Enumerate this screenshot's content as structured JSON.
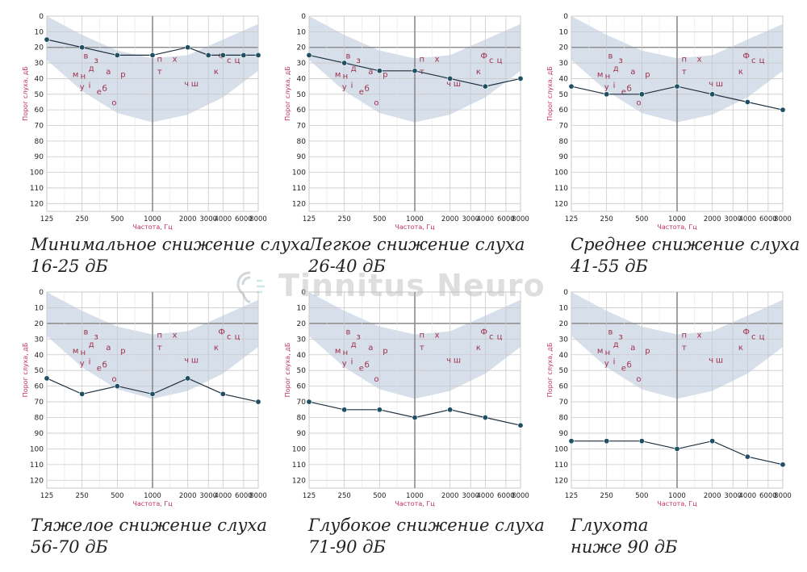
{
  "colors": {
    "grid": "#c9c9c9",
    "gridMajor": "#8a8a8a",
    "band": "#d6dfea",
    "line": "#1e2f3d",
    "point": "#1f4f63",
    "axisText": "#222222",
    "axisLabel": "#c0335a",
    "phoneme": "#a0304a"
  },
  "watermark": {
    "text": "Tinnitus Neuro"
  },
  "chart_data": [
    {
      "type": "line",
      "caption": [
        "Минимальное снижение слуха",
        "16-25 дБ"
      ],
      "xlabel": "Частота, Гц",
      "ylabel": "Порог слуха, дБ",
      "x_ticks": [
        "125",
        "250",
        "500",
        "1000",
        "2000",
        "3000",
        "4000",
        "6000",
        "8000"
      ],
      "y_ticks": [
        "0",
        "10",
        "20",
        "30",
        "40",
        "50",
        "60",
        "70",
        "80",
        "90",
        "100",
        "110",
        "120"
      ],
      "ylim": [
        0,
        125
      ],
      "y_reversed": true,
      "series": [
        {
          "x": [
            125,
            250,
            500,
            1000,
            2000,
            3000,
            4000,
            6000,
            8000
          ],
          "values": [
            15,
            20,
            25,
            25,
            20,
            25,
            25,
            25,
            25
          ]
        }
      ]
    },
    {
      "type": "line",
      "caption": [
        "Легкое снижение слуха",
        "26-40 дБ"
      ],
      "xlabel": "Частота, Гц",
      "ylabel": "Порог слуха, дБ",
      "x_ticks": [
        "125",
        "250",
        "500",
        "1000",
        "2000",
        "3000",
        "4000",
        "6000",
        "8000"
      ],
      "y_ticks": [
        "0",
        "10",
        "20",
        "30",
        "40",
        "50",
        "60",
        "70",
        "80",
        "90",
        "100",
        "110",
        "120"
      ],
      "ylim": [
        0,
        125
      ],
      "y_reversed": true,
      "series": [
        {
          "x": [
            125,
            250,
            500,
            1000,
            2000,
            4000,
            8000
          ],
          "values": [
            25,
            30,
            35,
            35,
            40,
            45,
            40
          ]
        }
      ]
    },
    {
      "type": "line",
      "caption": [
        "Среднее снижение слуха",
        "41-55 дБ"
      ],
      "xlabel": "Частота, Гц",
      "ylabel": "Порог слуха, дБ",
      "x_ticks": [
        "125",
        "250",
        "500",
        "1000",
        "2000",
        "3000",
        "4000",
        "6000",
        "8000"
      ],
      "y_ticks": [
        "0",
        "10",
        "20",
        "30",
        "40",
        "50",
        "60",
        "70",
        "80",
        "90",
        "100",
        "110",
        "120"
      ],
      "ylim": [
        0,
        125
      ],
      "y_reversed": true,
      "series": [
        {
          "x": [
            125,
            250,
            500,
            1000,
            2000,
            4000,
            8000
          ],
          "values": [
            45,
            50,
            50,
            45,
            50,
            55,
            60
          ]
        }
      ]
    },
    {
      "type": "line",
      "caption": [
        "Тяжелое снижение слуха",
        "56-70 дБ"
      ],
      "xlabel": "Частота, Гц",
      "ylabel": "Порог слуха, дБ",
      "x_ticks": [
        "125",
        "250",
        "500",
        "1000",
        "2000",
        "3000",
        "4000",
        "6000",
        "8000"
      ],
      "y_ticks": [
        "0",
        "10",
        "20",
        "30",
        "40",
        "50",
        "60",
        "70",
        "80",
        "90",
        "100",
        "110",
        "120"
      ],
      "ylim": [
        0,
        125
      ],
      "y_reversed": true,
      "series": [
        {
          "x": [
            125,
            250,
            500,
            1000,
            2000,
            4000,
            8000
          ],
          "values": [
            55,
            65,
            60,
            65,
            55,
            65,
            70
          ]
        }
      ]
    },
    {
      "type": "line",
      "caption": [
        "Глубокое снижение слуха",
        "71-90 дБ"
      ],
      "xlabel": "Частота, Гц",
      "ylabel": "Порог слуха, дБ",
      "x_ticks": [
        "125",
        "250",
        "500",
        "1000",
        "2000",
        "3000",
        "4000",
        "6000",
        "8000"
      ],
      "y_ticks": [
        "0",
        "10",
        "20",
        "30",
        "40",
        "50",
        "60",
        "70",
        "80",
        "90",
        "100",
        "110",
        "120"
      ],
      "ylim": [
        0,
        125
      ],
      "y_reversed": true,
      "series": [
        {
          "x": [
            125,
            250,
            500,
            1000,
            2000,
            4000,
            8000
          ],
          "values": [
            70,
            75,
            75,
            80,
            75,
            80,
            85
          ]
        }
      ]
    },
    {
      "type": "line",
      "caption": [
        "Глухота",
        "ниже 90 дБ"
      ],
      "xlabel": "Частота, Гц",
      "ylabel": "Порог слуха, дБ",
      "x_ticks": [
        "125",
        "250",
        "500",
        "1000",
        "2000",
        "3000",
        "4000",
        "6000",
        "8000"
      ],
      "y_ticks": [
        "0",
        "10",
        "20",
        "30",
        "40",
        "50",
        "60",
        "70",
        "80",
        "90",
        "100",
        "110",
        "120"
      ],
      "ylim": [
        0,
        125
      ],
      "y_reversed": true,
      "series": [
        {
          "x": [
            125,
            250,
            500,
            1000,
            2000,
            4000,
            8000
          ],
          "values": [
            95,
            95,
            95,
            100,
            95,
            105,
            110
          ]
        }
      ]
    }
  ],
  "speech_banana": {
    "band_upper": [
      {
        "x": 125,
        "db": 0
      },
      {
        "x": 250,
        "db": 12
      },
      {
        "x": 500,
        "db": 22
      },
      {
        "x": 1000,
        "db": 27
      },
      {
        "x": 2000,
        "db": 25
      },
      {
        "x": 4000,
        "db": 15
      },
      {
        "x": 8000,
        "db": 5
      }
    ],
    "band_lower": [
      {
        "x": 125,
        "db": 28
      },
      {
        "x": 250,
        "db": 48
      },
      {
        "x": 500,
        "db": 62
      },
      {
        "x": 1000,
        "db": 68
      },
      {
        "x": 2000,
        "db": 63
      },
      {
        "x": 4000,
        "db": 52
      },
      {
        "x": 8000,
        "db": 35
      }
    ],
    "phonemes": [
      {
        "t": "в",
        "f": 270,
        "db": 25
      },
      {
        "t": "з",
        "f": 330,
        "db": 28
      },
      {
        "t": "д",
        "f": 300,
        "db": 33
      },
      {
        "t": "а",
        "f": 420,
        "db": 35
      },
      {
        "t": "м",
        "f": 220,
        "db": 37
      },
      {
        "t": "н",
        "f": 255,
        "db": 38
      },
      {
        "t": "р",
        "f": 560,
        "db": 37
      },
      {
        "t": "у",
        "f": 250,
        "db": 45
      },
      {
        "t": "і",
        "f": 290,
        "db": 44
      },
      {
        "t": "е",
        "f": 350,
        "db": 48
      },
      {
        "t": "б",
        "f": 390,
        "db": 46
      },
      {
        "t": "о",
        "f": 470,
        "db": 55
      },
      {
        "t": "п",
        "f": 1150,
        "db": 27
      },
      {
        "t": "х",
        "f": 1550,
        "db": 27
      },
      {
        "t": "т",
        "f": 1150,
        "db": 35
      },
      {
        "t": "Ф",
        "f": 3900,
        "db": 25
      },
      {
        "t": "с",
        "f": 4500,
        "db": 28
      },
      {
        "t": "ц",
        "f": 5300,
        "db": 28
      },
      {
        "t": "к",
        "f": 3500,
        "db": 35
      },
      {
        "t": "ч",
        "f": 1950,
        "db": 43
      },
      {
        "t": "ш",
        "f": 2300,
        "db": 43
      }
    ]
  }
}
